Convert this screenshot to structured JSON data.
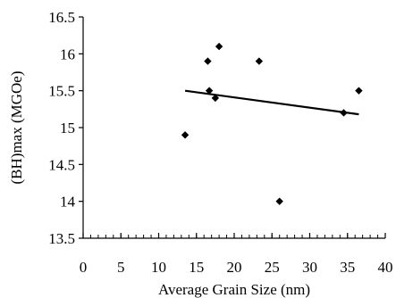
{
  "chart_data": {
    "type": "scatter",
    "title": "",
    "xlabel": "Average Grain Size (nm)",
    "ylabel": "(BH)max (MGOe)",
    "xlim": [
      0,
      40
    ],
    "ylim": [
      13.5,
      16.5
    ],
    "x_ticks": [
      0,
      5,
      10,
      15,
      20,
      25,
      30,
      35,
      40
    ],
    "y_ticks": [
      13.5,
      14,
      14.5,
      15,
      15.5,
      16,
      16.5
    ],
    "x_tick_labels": [
      "0",
      "5",
      "10",
      "15",
      "20",
      "25",
      "30",
      "35",
      "40"
    ],
    "y_tick_labels": [
      "13.5",
      "14",
      "14.5",
      "15",
      "15.5",
      "16",
      "16.5"
    ],
    "x_minor_step": 1,
    "grid": false,
    "legend": "none",
    "marker": "diamond",
    "colors": {
      "marker": "#000000",
      "trendline": "#000000",
      "axes": "#000000"
    },
    "series": [
      {
        "points": [
          {
            "x": 13.5,
            "y": 14.9
          },
          {
            "x": 16.5,
            "y": 15.9
          },
          {
            "x": 16.7,
            "y": 15.5
          },
          {
            "x": 17.5,
            "y": 15.4
          },
          {
            "x": 18.0,
            "y": 16.1
          },
          {
            "x": 23.3,
            "y": 15.9
          },
          {
            "x": 26.0,
            "y": 14.0
          },
          {
            "x": 34.5,
            "y": 15.2
          },
          {
            "x": 36.5,
            "y": 15.5
          }
        ]
      }
    ],
    "trendline": {
      "type": "linear",
      "points": [
        {
          "x": 13.5,
          "y": 15.5
        },
        {
          "x": 36.5,
          "y": 15.18
        }
      ]
    }
  }
}
